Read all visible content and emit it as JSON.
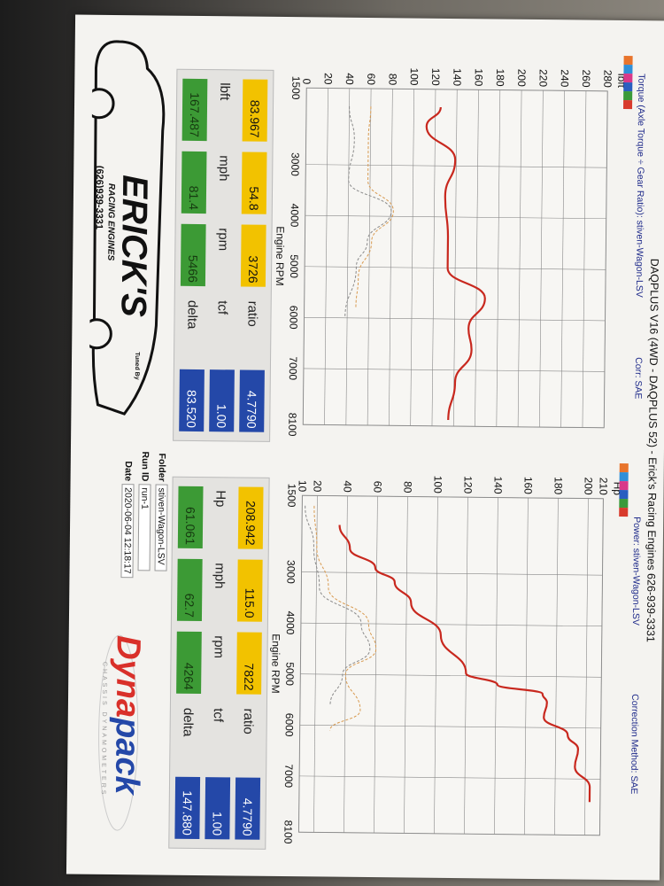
{
  "header": {
    "title": "DAQPLUS V16 (4WD - DAQPLUS 52) - Erick's Racing Engines 626-939-3331",
    "torque_subtitle": "Torque (Axle Torque ÷ Gear Ratio): stiven-Wagon-LSV",
    "torque_corr": "Corr: SAE",
    "power_subtitle": "Power: stiven-Wagon-LSV",
    "power_corr": "Correction Method: SAE"
  },
  "legend_colors": [
    "#e8742c",
    "#2f8fd8",
    "#d8388a",
    "#2a5ec0",
    "#3a9a3a",
    "#d83a2c"
  ],
  "chart_data": [
    {
      "type": "line",
      "ylabel": "lbft",
      "xlabel": "Engine RPM",
      "xlim": [
        1500,
        8100
      ],
      "ylim": [
        0,
        280
      ],
      "xticks": [
        1500,
        3000,
        4000,
        5000,
        6000,
        7000,
        8100
      ],
      "yticks": [
        0,
        20,
        40,
        60,
        80,
        100,
        120,
        140,
        160,
        180,
        200,
        220,
        240,
        260,
        280
      ],
      "grid": true,
      "series": [
        {
          "style": "solid",
          "color": "#c8281e",
          "x": [
            1850,
            2230,
            2880,
            3590,
            4410,
            5000,
            5590,
            6180,
            6600,
            7240,
            7980
          ],
          "y": [
            125,
            112,
            139,
            130,
            133,
            133,
            168,
            153,
            156,
            141,
            135
          ]
        },
        {
          "style": "dashed",
          "color": "#d89a50",
          "x": [
            1850,
            2500,
            3300,
            3900,
            4500,
            5200,
            5800
          ],
          "y": [
            60,
            58,
            58,
            82,
            62,
            50,
            48
          ]
        },
        {
          "style": "dashed",
          "color": "#8a8a8a",
          "x": [
            1850,
            2500,
            3300,
            3900,
            4500,
            5000,
            6000
          ],
          "y": [
            40,
            45,
            40,
            80,
            58,
            48,
            38
          ]
        }
      ]
    },
    {
      "type": "line",
      "ylabel": "Hp",
      "xlabel": "Engine RPM",
      "xlim": [
        1500,
        8100
      ],
      "ylim": [
        10,
        210
      ],
      "xticks": [
        1500,
        3000,
        4000,
        5000,
        6000,
        7000,
        8100
      ],
      "yticks": [
        10,
        20,
        40,
        60,
        80,
        100,
        120,
        140,
        160,
        180,
        200,
        210
      ],
      "grid": true,
      "series": [
        {
          "style": "solid",
          "color": "#c8281e",
          "x": [
            2070,
            2530,
            2900,
            3180,
            3580,
            4210,
            4950,
            5170,
            5340,
            5510,
            5800,
            6140,
            6420,
            6760,
            7160,
            7450
          ],
          "y": [
            35,
            42,
            59,
            72,
            83,
            103,
            120,
            141,
            171,
            174,
            172,
            188,
            195,
            193,
            203,
            203
          ]
        },
        {
          "style": "dashed",
          "color": "#d89a50",
          "x": [
            1700,
            2500,
            3300,
            4000,
            4500,
            5000,
            5700,
            6100
          ],
          "y": [
            18,
            20,
            28,
            55,
            60,
            40,
            50,
            30
          ]
        },
        {
          "style": "dashed",
          "color": "#8a8a8a",
          "x": [
            1700,
            2500,
            3300,
            4000,
            4500,
            5000,
            5600
          ],
          "y": [
            12,
            18,
            22,
            50,
            56,
            38,
            30
          ]
        }
      ]
    }
  ],
  "torque_stats": {
    "v1": "83.967",
    "v2": "54.8",
    "v3": "3726",
    "l1": "lbft",
    "l2": "mph",
    "l3": "rpm",
    "g1": "167.487",
    "g2": "81.4",
    "g3": "5466",
    "ratio_label": "ratio",
    "tcf_label": "tcf",
    "delta_label": "delta",
    "ratio": "4.7790",
    "tcf": "1.00",
    "delta": "83.520"
  },
  "power_stats": {
    "v1": "208.942",
    "v2": "115.0",
    "v3": "7822",
    "l1": "Hp",
    "l2": "mph",
    "l3": "rpm",
    "g1": "61.061",
    "g2": "62.7",
    "g3": "4264",
    "ratio_label": "ratio",
    "tcf_label": "tcf",
    "delta_label": "delta",
    "ratio": "4.7790",
    "tcf": "1.00",
    "delta": "147.880"
  },
  "info": {
    "folder_label": "Folder",
    "folder": "stiven-Wagon-LSV",
    "run_label": "Run ID",
    "run": "run-1",
    "date_label": "Date",
    "date": "2020-06-04 12:18:17"
  },
  "logo": {
    "name": "ERICK'S",
    "tag": "RACING ENGINES",
    "phone": "(626)939-3331",
    "tuned": "Tuned By"
  },
  "dynapack": {
    "name_a": "Dyna",
    "name_b": "pack",
    "tag": "CHASSIS DYNAMOMETERS"
  }
}
